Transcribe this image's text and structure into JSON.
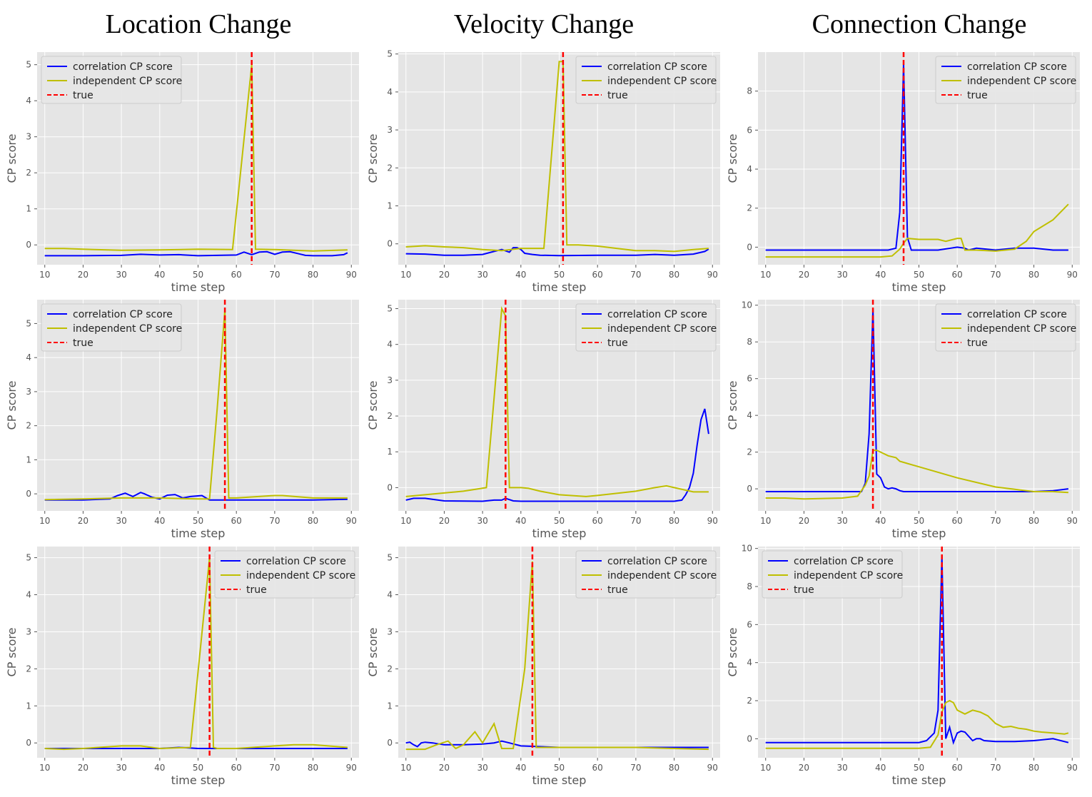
{
  "column_titles": [
    "Location Change",
    "Velocity Change",
    "Connection Change"
  ],
  "colors": {
    "correlation": "#0000ff",
    "independent": "#bfbf00",
    "true": "#ff0000",
    "panel_bg": "#e5e5e5",
    "grid": "#ffffff"
  },
  "chart_data": [
    {
      "type": "line",
      "xlabel": "time step",
      "ylabel": "CP score",
      "xlim": [
        8,
        92
      ],
      "ylim": [
        -0.55,
        5.35
      ],
      "xticks": [
        10,
        20,
        30,
        40,
        50,
        60,
        70,
        80,
        90
      ],
      "yticks": [
        0,
        1,
        2,
        3,
        4,
        5
      ],
      "legend": "top-left",
      "true_cp": 64,
      "series": [
        {
          "name": "correlation CP score",
          "x": [
            10,
            20,
            30,
            35,
            40,
            45,
            50,
            55,
            60,
            62,
            64,
            66,
            68,
            70,
            72,
            74,
            76,
            78,
            80,
            85,
            88,
            89
          ],
          "y": [
            -0.3,
            -0.3,
            -0.29,
            -0.26,
            -0.28,
            -0.27,
            -0.3,
            -0.29,
            -0.28,
            -0.2,
            -0.27,
            -0.2,
            -0.19,
            -0.26,
            -0.2,
            -0.19,
            -0.24,
            -0.29,
            -0.3,
            -0.3,
            -0.27,
            -0.22
          ]
        },
        {
          "name": "independent CP score",
          "x": [
            10,
            15,
            20,
            30,
            40,
            50,
            59,
            64,
            65,
            70,
            80,
            89
          ],
          "y": [
            -0.1,
            -0.1,
            -0.12,
            -0.15,
            -0.14,
            -0.12,
            -0.13,
            5.0,
            -0.12,
            -0.13,
            -0.17,
            -0.14
          ]
        }
      ]
    },
    {
      "type": "line",
      "xlabel": "time step",
      "ylabel": "CP score",
      "xlim": [
        8,
        92
      ],
      "ylim": [
        -0.55,
        5.05
      ],
      "xticks": [
        10,
        20,
        30,
        40,
        50,
        60,
        70,
        80,
        90
      ],
      "yticks": [
        0,
        1,
        2,
        3,
        4,
        5
      ],
      "legend": "top-right",
      "true_cp": 51,
      "series": [
        {
          "name": "correlation CP score",
          "x": [
            10,
            15,
            20,
            25,
            30,
            33,
            35,
            37,
            38,
            39,
            40,
            41,
            43,
            45,
            50,
            60,
            70,
            75,
            80,
            85,
            88,
            89
          ],
          "y": [
            -0.26,
            -0.27,
            -0.3,
            -0.3,
            -0.28,
            -0.2,
            -0.15,
            -0.22,
            -0.1,
            -0.1,
            -0.15,
            -0.25,
            -0.28,
            -0.3,
            -0.31,
            -0.3,
            -0.3,
            -0.28,
            -0.3,
            -0.27,
            -0.2,
            -0.14
          ]
        },
        {
          "name": "independent CP score",
          "x": [
            10,
            15,
            20,
            25,
            30,
            35,
            40,
            46,
            50,
            51,
            52,
            55,
            60,
            65,
            70,
            75,
            80,
            85,
            89
          ],
          "y": [
            -0.08,
            -0.05,
            -0.08,
            -0.1,
            -0.15,
            -0.18,
            -0.12,
            -0.12,
            4.8,
            4.8,
            -0.03,
            -0.03,
            -0.06,
            -0.12,
            -0.18,
            -0.18,
            -0.2,
            -0.15,
            -0.12
          ]
        }
      ]
    },
    {
      "type": "line",
      "xlabel": "time step",
      "ylabel": "CP score",
      "xlim": [
        8,
        92
      ],
      "ylim": [
        -0.9,
        10.0
      ],
      "xticks": [
        10,
        20,
        30,
        40,
        50,
        60,
        70,
        80,
        90
      ],
      "yticks": [
        0,
        2,
        4,
        6,
        8
      ],
      "legend": "top-right",
      "true_cp": 46,
      "series": [
        {
          "name": "correlation CP score",
          "x": [
            10,
            20,
            30,
            40,
            42,
            44,
            45,
            46,
            47,
            48,
            50,
            55,
            60,
            62,
            63,
            65,
            70,
            75,
            80,
            85,
            89
          ],
          "y": [
            -0.15,
            -0.15,
            -0.15,
            -0.15,
            -0.15,
            -0.05,
            1.8,
            9.4,
            0.5,
            -0.15,
            -0.15,
            -0.15,
            0.0,
            -0.05,
            -0.15,
            -0.05,
            -0.15,
            -0.05,
            -0.05,
            -0.15,
            -0.15
          ]
        },
        {
          "name": "independent CP score",
          "x": [
            10,
            20,
            30,
            40,
            43,
            45,
            46,
            47,
            50,
            55,
            57,
            60,
            61,
            62,
            65,
            70,
            75,
            78,
            80,
            85,
            89
          ],
          "y": [
            -0.5,
            -0.5,
            -0.5,
            -0.5,
            -0.45,
            -0.1,
            0.2,
            0.45,
            0.4,
            0.4,
            0.3,
            0.45,
            0.45,
            -0.15,
            -0.15,
            -0.2,
            -0.1,
            0.3,
            0.8,
            1.4,
            2.2
          ]
        }
      ]
    },
    {
      "type": "line",
      "xlabel": "time step",
      "ylabel": "CP score",
      "xlim": [
        8,
        92
      ],
      "ylim": [
        -0.5,
        5.7
      ],
      "xticks": [
        10,
        20,
        30,
        40,
        50,
        60,
        70,
        80,
        90
      ],
      "yticks": [
        0,
        1,
        2,
        3,
        4,
        5
      ],
      "legend": "top-left",
      "true_cp": 57,
      "series": [
        {
          "name": "correlation CP score",
          "x": [
            10,
            20,
            27,
            29,
            31,
            33,
            35,
            36,
            38,
            40,
            42,
            44,
            46,
            48,
            51,
            53,
            58,
            60,
            70,
            80,
            89
          ],
          "y": [
            -0.18,
            -0.18,
            -0.15,
            -0.05,
            0.02,
            -0.08,
            0.04,
            0.0,
            -0.1,
            -0.15,
            -0.04,
            -0.02,
            -0.12,
            -0.08,
            -0.05,
            -0.18,
            -0.18,
            -0.18,
            -0.18,
            -0.18,
            -0.16
          ]
        },
        {
          "name": "independent CP score",
          "x": [
            10,
            20,
            30,
            40,
            50,
            53,
            55,
            57,
            58,
            60,
            70,
            72,
            80,
            89
          ],
          "y": [
            -0.17,
            -0.15,
            -0.12,
            -0.12,
            -0.15,
            -0.15,
            2.5,
            5.4,
            -0.12,
            -0.12,
            -0.05,
            -0.05,
            -0.12,
            -0.12
          ]
        }
      ]
    },
    {
      "type": "line",
      "xlabel": "time step",
      "ylabel": "CP score",
      "xlim": [
        8,
        92
      ],
      "ylim": [
        -0.65,
        5.25
      ],
      "xticks": [
        10,
        20,
        30,
        40,
        50,
        60,
        70,
        80,
        90
      ],
      "yticks": [
        0,
        1,
        2,
        3,
        4,
        5
      ],
      "legend": "top-right",
      "true_cp": 36,
      "series": [
        {
          "name": "correlation CP score",
          "x": [
            10,
            12,
            15,
            20,
            30,
            33,
            35,
            36,
            38,
            40,
            50,
            60,
            70,
            80,
            82,
            83,
            84,
            85,
            86,
            87,
            88,
            89
          ],
          "y": [
            -0.35,
            -0.3,
            -0.3,
            -0.37,
            -0.38,
            -0.35,
            -0.35,
            -0.3,
            -0.37,
            -0.38,
            -0.38,
            -0.38,
            -0.38,
            -0.38,
            -0.35,
            -0.2,
            0.0,
            0.4,
            1.2,
            1.9,
            2.2,
            1.5
          ]
        },
        {
          "name": "independent CP score",
          "x": [
            10,
            15,
            20,
            25,
            28,
            31,
            35,
            36,
            37,
            40,
            42,
            45,
            50,
            57,
            60,
            70,
            75,
            78,
            80,
            85,
            89
          ],
          "y": [
            -0.25,
            -0.2,
            -0.15,
            -0.1,
            -0.05,
            0.0,
            5.0,
            4.8,
            0.0,
            0.0,
            -0.02,
            -0.1,
            -0.2,
            -0.25,
            -0.22,
            -0.1,
            0.0,
            0.05,
            0.0,
            -0.12,
            -0.12
          ]
        }
      ]
    },
    {
      "type": "line",
      "xlabel": "time step",
      "ylabel": "CP score",
      "xlim": [
        8,
        92
      ],
      "ylim": [
        -1.2,
        10.3
      ],
      "xticks": [
        10,
        20,
        30,
        40,
        50,
        60,
        70,
        80,
        90
      ],
      "yticks": [
        0,
        2,
        4,
        6,
        8,
        10
      ],
      "legend": "top-right",
      "true_cp": 38,
      "series": [
        {
          "name": "correlation CP score",
          "x": [
            10,
            20,
            30,
            35,
            36,
            37,
            38,
            39,
            40,
            41,
            42,
            43,
            44,
            45,
            46,
            50,
            60,
            70,
            80,
            85,
            89
          ],
          "y": [
            -0.15,
            -0.15,
            -0.15,
            -0.15,
            0.3,
            3.0,
            9.8,
            0.8,
            0.6,
            0.1,
            0.0,
            0.05,
            0.0,
            -0.1,
            -0.15,
            -0.15,
            -0.15,
            -0.15,
            -0.15,
            -0.1,
            0.0
          ]
        },
        {
          "name": "independent CP score",
          "x": [
            10,
            15,
            20,
            30,
            34,
            36,
            37,
            38,
            39,
            40,
            42,
            44,
            45,
            50,
            60,
            70,
            80,
            85,
            89
          ],
          "y": [
            -0.5,
            -0.5,
            -0.55,
            -0.5,
            -0.4,
            0.2,
            0.7,
            2.1,
            2.1,
            2.0,
            1.8,
            1.7,
            1.5,
            1.2,
            0.6,
            0.1,
            -0.15,
            -0.15,
            -0.2
          ]
        }
      ]
    },
    {
      "type": "line",
      "xlabel": "time step",
      "ylabel": "CP score",
      "xlim": [
        8,
        92
      ],
      "ylim": [
        -0.4,
        5.3
      ],
      "xticks": [
        10,
        20,
        30,
        40,
        50,
        60,
        70,
        80,
        90
      ],
      "yticks": [
        0,
        1,
        2,
        3,
        4,
        5
      ],
      "legend": "top-right",
      "true_cp": 53,
      "series": [
        {
          "name": "correlation CP score",
          "x": [
            10,
            20,
            30,
            40,
            45,
            47,
            50,
            55,
            60,
            70,
            80,
            89
          ],
          "y": [
            -0.15,
            -0.15,
            -0.15,
            -0.15,
            -0.12,
            -0.13,
            -0.15,
            -0.15,
            -0.15,
            -0.15,
            -0.15,
            -0.15
          ]
        },
        {
          "name": "independent CP score",
          "x": [
            10,
            15,
            20,
            30,
            35,
            40,
            48,
            53,
            54,
            55,
            60,
            70,
            75,
            80,
            89
          ],
          "y": [
            -0.15,
            -0.17,
            -0.15,
            -0.08,
            -0.08,
            -0.15,
            -0.12,
            5.0,
            -0.12,
            -0.15,
            -0.15,
            -0.08,
            -0.05,
            -0.05,
            -0.12
          ]
        }
      ]
    },
    {
      "type": "line",
      "xlabel": "time step",
      "ylabel": "CP score",
      "xlim": [
        8,
        92
      ],
      "ylim": [
        -0.4,
        5.3
      ],
      "xticks": [
        10,
        20,
        30,
        40,
        50,
        60,
        70,
        80,
        90
      ],
      "yticks": [
        0,
        1,
        2,
        3,
        4,
        5
      ],
      "legend": "top-right",
      "true_cp": 43,
      "series": [
        {
          "name": "correlation CP score",
          "x": [
            10,
            11,
            12,
            13,
            14,
            15,
            17,
            20,
            25,
            30,
            33,
            35,
            37,
            40,
            45,
            50,
            60,
            70,
            80,
            89
          ],
          "y": [
            0.0,
            0.02,
            -0.05,
            -0.1,
            0.0,
            0.02,
            0.0,
            -0.05,
            -0.05,
            -0.03,
            0.0,
            0.05,
            0.0,
            -0.08,
            -0.1,
            -0.12,
            -0.12,
            -0.12,
            -0.12,
            -0.12
          ]
        },
        {
          "name": "independent CP score",
          "x": [
            10,
            15,
            18,
            21,
            23,
            25,
            28,
            30,
            33,
            35,
            38,
            41,
            43,
            44,
            45,
            50,
            60,
            70,
            80,
            89
          ],
          "y": [
            -0.17,
            -0.17,
            -0.05,
            0.05,
            -0.15,
            -0.05,
            0.3,
            0.0,
            0.52,
            -0.15,
            -0.15,
            2.0,
            4.9,
            -0.12,
            -0.12,
            -0.12,
            -0.12,
            -0.12,
            -0.15,
            -0.17
          ]
        }
      ]
    },
    {
      "type": "line",
      "xlabel": "time step",
      "ylabel": "CP score",
      "xlim": [
        8,
        92
      ],
      "ylim": [
        -1.0,
        10.1
      ],
      "xticks": [
        10,
        20,
        30,
        40,
        50,
        60,
        70,
        80,
        90
      ],
      "yticks": [
        0,
        2,
        4,
        6,
        8,
        10
      ],
      "legend": "top-left",
      "true_cp": 56,
      "series": [
        {
          "name": "correlation CP score",
          "x": [
            10,
            20,
            30,
            40,
            50,
            52,
            54,
            55,
            56,
            57,
            58,
            59,
            60,
            61,
            62,
            64,
            65,
            66,
            67,
            70,
            75,
            80,
            85,
            89
          ],
          "y": [
            -0.2,
            -0.2,
            -0.2,
            -0.2,
            -0.2,
            -0.1,
            0.3,
            1.5,
            9.6,
            0.0,
            0.6,
            -0.2,
            0.3,
            0.4,
            0.35,
            -0.1,
            0.0,
            0.0,
            -0.1,
            -0.15,
            -0.15,
            -0.1,
            0.0,
            -0.2
          ]
        },
        {
          "name": "independent CP score",
          "x": [
            10,
            20,
            30,
            40,
            50,
            53,
            55,
            56,
            57,
            58,
            59,
            60,
            62,
            64,
            66,
            68,
            70,
            72,
            74,
            76,
            78,
            80,
            82,
            85,
            88,
            89
          ],
          "y": [
            -0.5,
            -0.5,
            -0.5,
            -0.5,
            -0.5,
            -0.45,
            0.2,
            1.4,
            1.9,
            2.0,
            1.9,
            1.5,
            1.3,
            1.5,
            1.4,
            1.2,
            0.8,
            0.6,
            0.65,
            0.55,
            0.5,
            0.4,
            0.35,
            0.3,
            0.25,
            0.3
          ]
        }
      ]
    }
  ]
}
